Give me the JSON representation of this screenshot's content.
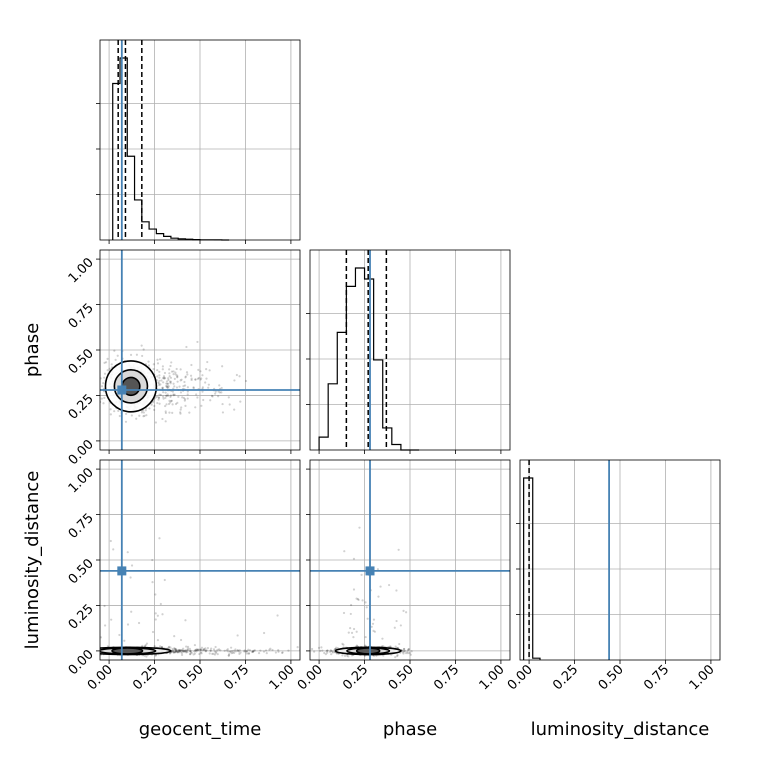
{
  "chart_data": {
    "type": "corner",
    "parameters": [
      "geocent_time",
      "phase",
      "luminosity_distance"
    ],
    "xlabels": [
      "geocent_time",
      "phase",
      "luminosity_distance"
    ],
    "ylabels": [
      "",
      "phase",
      "luminosity_distance"
    ],
    "axis_range": [
      -0.05,
      1.05
    ],
    "tick_values": [
      0.0,
      0.25,
      0.5,
      0.75,
      1.0
    ],
    "tick_labels": [
      "0.00",
      "0.25",
      "0.50",
      "0.75",
      "1.00"
    ],
    "grid": true,
    "truths": {
      "geocent_time": 0.07,
      "phase": 0.28,
      "luminosity_distance": 0.44
    },
    "truth_color": "#4682b4",
    "quantiles": {
      "geocent_time": [
        0.05,
        0.09,
        0.18
      ],
      "phase": [
        0.15,
        0.27,
        0.37
      ],
      "luminosity_distance": [
        0.0
      ]
    },
    "histograms": {
      "geocent_time": {
        "bin_edges": [
          0.02,
          0.06,
          0.1,
          0.14,
          0.18,
          0.22,
          0.26,
          0.3,
          0.34,
          0.38,
          0.42,
          0.46,
          0.5,
          0.54,
          0.58,
          0.62,
          0.66
        ],
        "counts": [
          0.86,
          1.0,
          0.46,
          0.22,
          0.1,
          0.06,
          0.035,
          0.02,
          0.01,
          0.006,
          0.004,
          0.002,
          0.001,
          0.001,
          0.0005,
          0.0
        ]
      },
      "phase": {
        "bin_edges": [
          0.0,
          0.05,
          0.1,
          0.15,
          0.2,
          0.25,
          0.3,
          0.35,
          0.4,
          0.45,
          0.5,
          0.55
        ],
        "counts": [
          0.07,
          0.36,
          0.64,
          0.89,
          0.99,
          0.93,
          0.49,
          0.12,
          0.03,
          0.0,
          0.0
        ]
      },
      "luminosity_distance": {
        "bin_edges": [
          -0.03,
          0.02,
          0.06
        ],
        "counts": [
          1.0,
          0.01
        ]
      }
    },
    "panels": [
      {
        "row": 1,
        "col": 0,
        "x": "geocent_time",
        "y": "phase",
        "center": [
          0.12,
          0.3
        ],
        "spread": [
          0.07,
          0.07
        ],
        "tail": "positive-x"
      },
      {
        "row": 2,
        "col": 0,
        "x": "geocent_time",
        "y": "luminosity_distance",
        "center": [
          0.1,
          0.0
        ],
        "spread": [
          0.12,
          0.01
        ],
        "tail": "positive-x"
      },
      {
        "row": 2,
        "col": 1,
        "x": "phase",
        "y": "luminosity_distance",
        "center": [
          0.27,
          0.0
        ],
        "spread": [
          0.09,
          0.01
        ],
        "tail": "none"
      }
    ]
  }
}
